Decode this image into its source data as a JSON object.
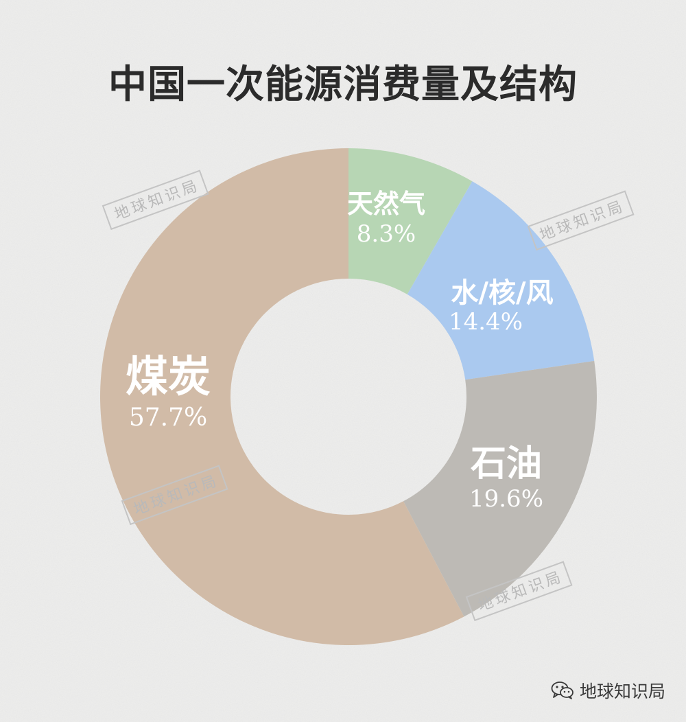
{
  "title": "中国一次能源消费量及结构",
  "colors": {
    "coal": "#d1bba7",
    "natural_gas": "#b7d6b4",
    "hydro_nuclear_wind": "#aac9ef",
    "oil": "#bdbab5",
    "title": "#2b2b2b",
    "label": "#ffffff"
  },
  "chart_data": {
    "type": "pie",
    "variant": "donut",
    "slices": [
      {
        "label": "天然气",
        "value": 8.3,
        "value_label": "8.3%",
        "color": "#b7d6b4"
      },
      {
        "label": "水/核/风",
        "value": 14.4,
        "value_label": "14.4%",
        "color": "#aac9ef"
      },
      {
        "label": "石油",
        "value": 19.6,
        "value_label": "19.6%",
        "color": "#bdbab5"
      },
      {
        "label": "煤炭",
        "value": 57.7,
        "value_label": "57.7%",
        "color": "#d1bba7"
      }
    ],
    "start": "top",
    "direction": "clockwise",
    "legend": "none",
    "unit": "%"
  },
  "watermark": {
    "text": "地球知识局"
  },
  "footer": {
    "brand": "地球知识局",
    "icon": "wechat-icon"
  }
}
